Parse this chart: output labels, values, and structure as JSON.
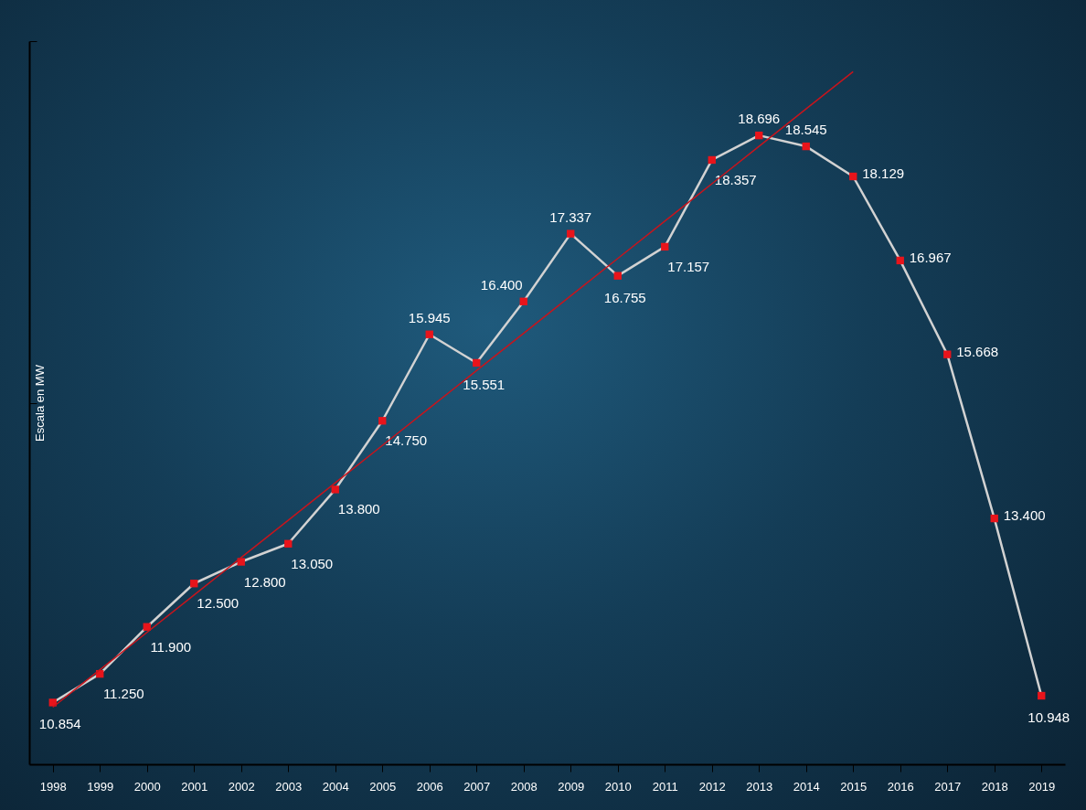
{
  "chart_data": {
    "type": "line",
    "ylabel": "Escala en MW",
    "categories": [
      "1998",
      "1999",
      "2000",
      "2001",
      "2002",
      "2003",
      "2004",
      "2005",
      "2006",
      "2007",
      "2008",
      "2009",
      "2010",
      "2011",
      "2012",
      "2013",
      "2014",
      "2015",
      "2016",
      "2017",
      "2018",
      "2019"
    ],
    "ylim": [
      10000,
      20000
    ],
    "yticks": [
      {
        "value": 15000,
        "label": null
      },
      {
        "value": 20000,
        "label": null
      }
    ],
    "tick_labels": "x",
    "marker": "square",
    "line_style": "solid",
    "grid": false,
    "series": [
      {
        "color": "#d2d2d2",
        "colors": [
          "#e8141b",
          "#e8141b",
          "#e8141b",
          "#e8141b",
          "#e8141b",
          "#e8141b",
          "#e8141b",
          "#e8141b",
          "#e8141b",
          "#e8141b",
          "#e8141b",
          "#e8141b",
          "#e8141b",
          "#e8141b",
          "#e8141b",
          "#e8141b",
          "#e8141b",
          "#e8141b",
          "#e8141b",
          "#e8141b",
          "#e8141b",
          "#e8141b"
        ],
        "values": [
          10854,
          11250,
          11900,
          12500,
          12800,
          13050,
          13800,
          14750,
          15945,
          15551,
          16400,
          17337,
          16755,
          17157,
          18357,
          18696,
          18545,
          18129,
          16967,
          15668,
          13400,
          10948
        ],
        "value_labels": [
          "10.854",
          "11.250",
          "11.900",
          "12.500",
          "12.800",
          "13.050",
          "13.800",
          "14.750",
          "15.945",
          "15.551",
          "16.400",
          "17.337",
          "16.755",
          "17.157",
          "18.357",
          "18.696",
          "18.545",
          "18.129",
          "16.967",
          "15.668",
          "13.400",
          "10.948"
        ]
      },
      {
        "type": "line",
        "color": "#c8141c",
        "marker": "none",
        "values": [
          10790,
          11307,
          11824,
          12341,
          12858,
          13375,
          13892,
          14409,
          14926,
          15443,
          15960,
          16477,
          16994,
          17511,
          18028,
          18545,
          19062,
          19579,
          null,
          null,
          null,
          null
        ]
      }
    ]
  }
}
